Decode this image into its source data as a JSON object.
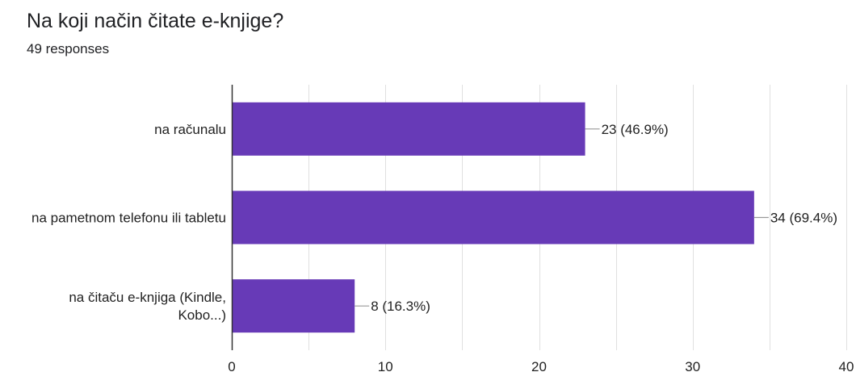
{
  "title": "Na koji način čitate e-knjige?",
  "subtitle": "49 responses",
  "colors": {
    "bar": "#673ab7",
    "grid": "#e0e0e0",
    "axis": "#333333",
    "connector": "#999999",
    "text": "#222222"
  },
  "chart_data": {
    "type": "bar",
    "orientation": "horizontal",
    "categories": [
      [
        "na računalu"
      ],
      [
        "na pametnom telefonu ili tabletu"
      ],
      [
        "na čitaču e-knjiga (Kindle,",
        "Kobo...)"
      ]
    ],
    "values": [
      23,
      34,
      8
    ],
    "data_labels": [
      "23 (46.9%)",
      "34 (69.4%)",
      "8 (16.3%)"
    ],
    "xlim": [
      0,
      40
    ],
    "xticks": [
      0,
      10,
      20,
      30,
      40
    ],
    "xtick_labels": [
      "0",
      "10",
      "20",
      "30",
      "40"
    ],
    "grid": true
  }
}
